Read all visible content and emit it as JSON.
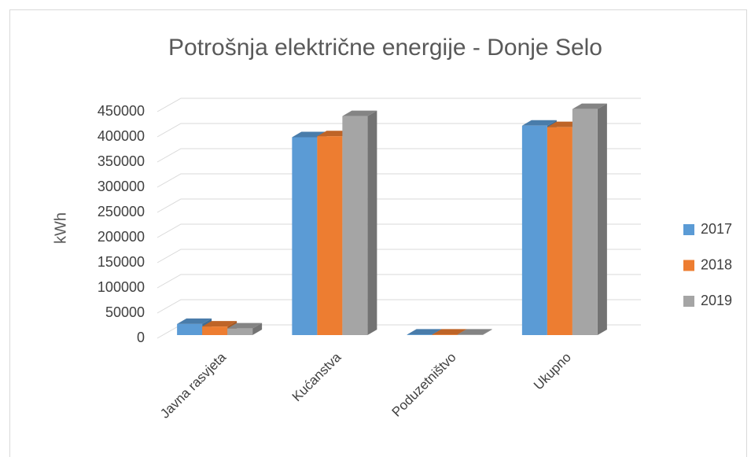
{
  "chart_data": {
    "type": "bar3d",
    "title": "Potrošnja električne energije - Donje Selo",
    "y_label": "kWh",
    "categories": [
      "Javna rasvjeta",
      "Kućanstva",
      "Poduzetništvo",
      "Ukupno"
    ],
    "series": [
      {
        "name": "2017",
        "color": "#5b9bd5",
        "values": [
          22000,
          393000,
          1000,
          416000
        ]
      },
      {
        "name": "2018",
        "color": "#ed7d31",
        "values": [
          17000,
          395000,
          1000,
          413000
        ]
      },
      {
        "name": "2019",
        "color": "#a5a5a5",
        "values": [
          13000,
          435000,
          1000,
          449000
        ]
      }
    ],
    "ylim": [
      0,
      450000
    ],
    "yticks": [
      0,
      50000,
      100000,
      150000,
      200000,
      250000,
      300000,
      350000,
      400000,
      450000
    ],
    "grid": true,
    "legend": "right"
  }
}
